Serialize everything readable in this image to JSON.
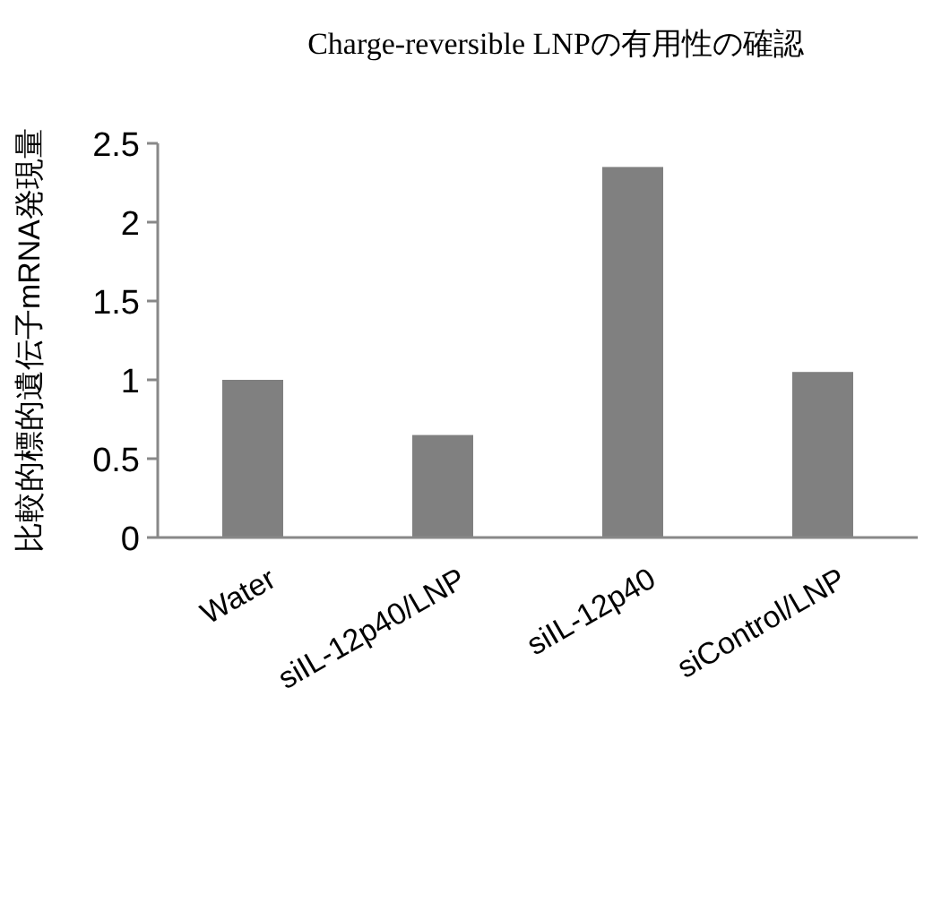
{
  "chart_data": {
    "type": "bar",
    "title": "Charge-reversible LNPの有用性の確認",
    "ylabel": "比較的標的遺伝子mRNA発現量",
    "categories": [
      "Water",
      "siIL-12p40/LNP",
      "siIL-12p40",
      "siControl/LNP"
    ],
    "values": [
      1.0,
      0.65,
      2.35,
      1.05
    ],
    "color": "#808080",
    "ylim": [
      0,
      2.5
    ],
    "yticks": [
      0,
      0.5,
      1,
      1.5,
      2,
      2.5
    ],
    "grid": false
  }
}
